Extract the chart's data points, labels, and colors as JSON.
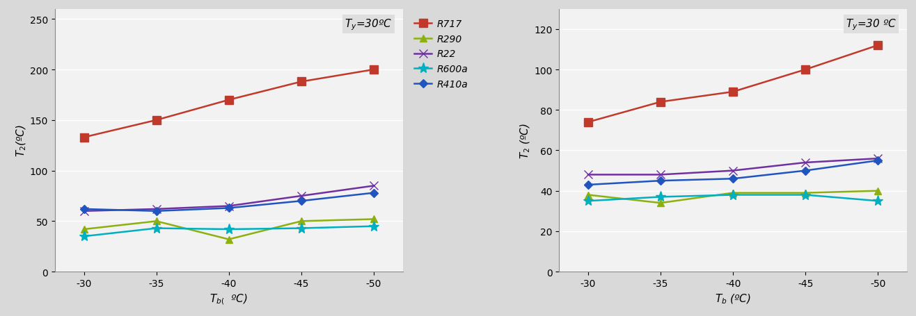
{
  "x": [
    -30,
    -35,
    -40,
    -45,
    -50
  ],
  "left": {
    "title": "$T_y$=30ºC",
    "xlabel": "$T_{b(}$  ºC)",
    "ylabel": "$T_2$(ºC)",
    "ylim": [
      0,
      260
    ],
    "yticks": [
      0,
      50,
      100,
      150,
      200,
      250
    ],
    "series": {
      "R717": [
        133,
        150,
        170,
        188,
        200
      ],
      "R290": [
        42,
        50,
        32,
        50,
        52
      ],
      "R22": [
        60,
        62,
        65,
        75,
        85
      ],
      "R600a": [
        35,
        43,
        42,
        43,
        45
      ],
      "R410a": [
        62,
        60,
        63,
        70,
        78
      ]
    },
    "colors": {
      "R717": "#c0392b",
      "R290": "#8db010",
      "R22": "#7030a0",
      "R600a": "#00b0c0",
      "R410a": "#2055c0"
    },
    "markers": {
      "R717": "s",
      "R290": "^",
      "R22": "x",
      "R600a": "*",
      "R410a": "D"
    }
  },
  "right": {
    "title": "$T_y$=30 ºC",
    "xlabel": "$T_b$ (ºC)",
    "ylabel": "$T_2$ (ºC)",
    "ylim": [
      0,
      130
    ],
    "yticks": [
      0,
      20,
      40,
      60,
      80,
      100,
      120
    ],
    "series": {
      "R717": [
        74,
        84,
        89,
        100,
        112
      ],
      "R290": [
        38,
        34,
        39,
        39,
        40
      ],
      "R22": [
        48,
        48,
        50,
        54,
        56
      ],
      "R600a": [
        35,
        37,
        38,
        38,
        35
      ],
      "R410a": [
        43,
        45,
        46,
        50,
        55
      ]
    },
    "colors": {
      "R717": "#c0392b",
      "R290": "#8db010",
      "R22": "#7030a0",
      "R600a": "#00b0c0",
      "R410a": "#2055c0"
    },
    "markers": {
      "R717": "s",
      "R290": "^",
      "R22": "x",
      "R600a": "*",
      "R410a": "D"
    }
  },
  "bg_color": "#d9d9d9",
  "plot_bg": "#f2f2f2"
}
